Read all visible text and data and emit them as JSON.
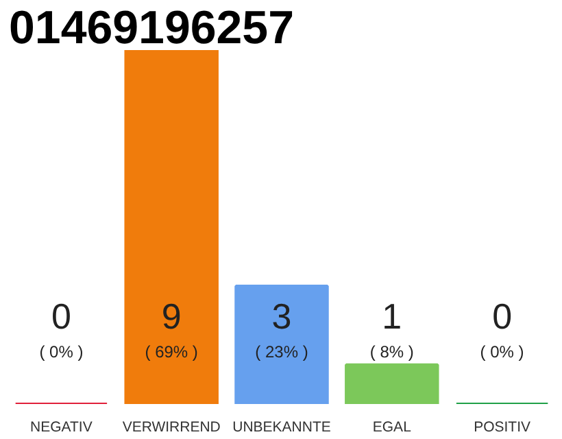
{
  "chart_data": {
    "type": "bar",
    "title": "01469196257",
    "categories": [
      "NEGATIV",
      "VERWIRREND",
      "UNBEKANNTE",
      "EGAL",
      "POSITIV"
    ],
    "values": [
      0,
      9,
      3,
      1,
      0
    ],
    "colors": [
      "#e0203a",
      "#f07c0c",
      "#66a0ee",
      "#7cc85a",
      "#20a048"
    ],
    "value_labels": [
      "0",
      "9",
      "3",
      "1",
      "0"
    ],
    "annotations": [
      "( 0% )",
      "( 69% )",
      "( 23% )",
      "( 8% )",
      "( 0% )"
    ],
    "grid": false
  }
}
